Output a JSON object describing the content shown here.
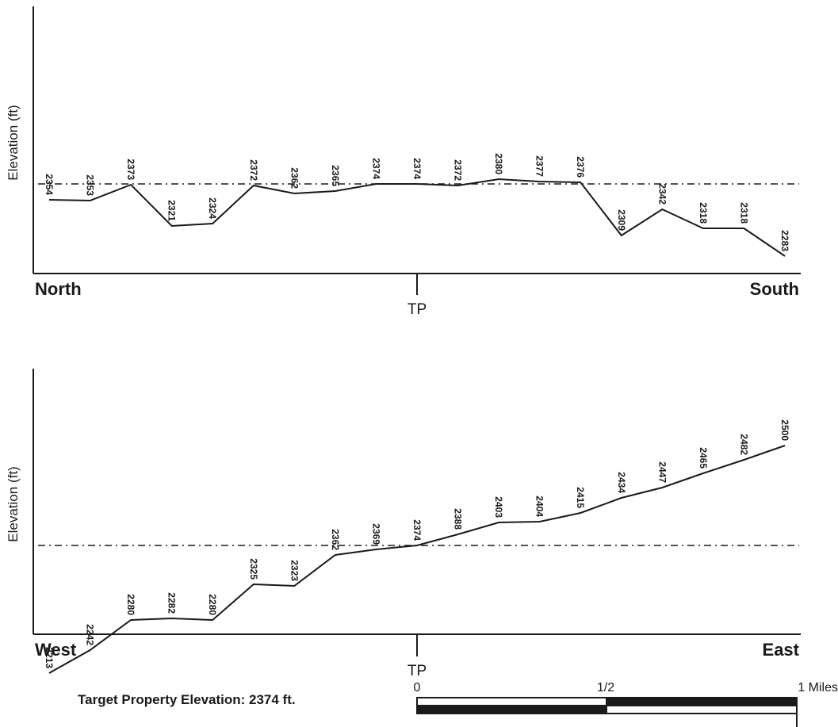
{
  "chart_data": [
    {
      "type": "line",
      "ylabel": "Elevation (ft)",
      "left_label": "North",
      "right_label": "South",
      "center_label": "TP",
      "reference_elevation": 2374,
      "ylim": [
        2200,
        2510
      ],
      "values": [
        2354,
        2353,
        2373,
        2321,
        2324,
        2372,
        2362,
        2365,
        2374,
        2374,
        2372,
        2380,
        2377,
        2376,
        2309,
        2342,
        2318,
        2318,
        2283
      ]
    },
    {
      "type": "line",
      "ylabel": "Elevation (ft)",
      "left_label": "West",
      "right_label": "East",
      "center_label": "TP",
      "reference_elevation": 2374,
      "ylim": [
        2200,
        2510
      ],
      "values": [
        2213,
        2242,
        2280,
        2282,
        2280,
        2325,
        2323,
        2362,
        2369,
        2374,
        2388,
        2403,
        2404,
        2415,
        2434,
        2447,
        2465,
        2482,
        2500
      ]
    }
  ],
  "footer": {
    "target_text": "Target Property Elevation: 2374 ft."
  },
  "scale_bar": {
    "labels": [
      "0",
      "1/2",
      "1 Miles"
    ]
  }
}
